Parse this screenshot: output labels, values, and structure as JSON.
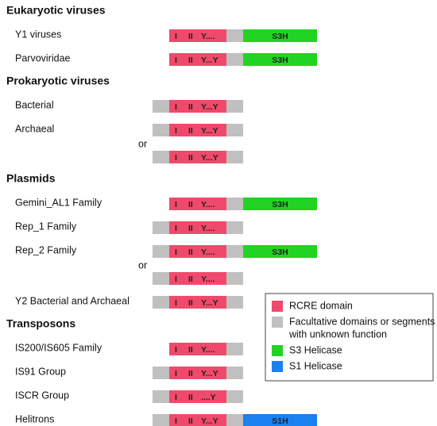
{
  "sections": [
    {
      "title": "Eukaryotic viruses",
      "rows": [
        {
          "label": "Y1 viruses",
          "bars": [
            [
              {
                "type": "rcre",
                "motifs": [
                  "I",
                  "II",
                  "Y...."
                ]
              },
              {
                "type": "gray"
              },
              {
                "type": "s3",
                "label": "S3H"
              }
            ]
          ]
        },
        {
          "label": "Parvoviridae",
          "bars": [
            [
              {
                "type": "rcre",
                "motifs": [
                  "I",
                  "II",
                  "Y...Y"
                ]
              },
              {
                "type": "gray"
              },
              {
                "type": "s3",
                "label": "S3H"
              }
            ]
          ]
        }
      ]
    },
    {
      "title": "Prokaryotic viruses",
      "rows": [
        {
          "label": "Bacterial",
          "bars": [
            [
              {
                "type": "gray"
              },
              {
                "type": "rcre",
                "motifs": [
                  "I",
                  "II",
                  "Y...Y"
                ]
              },
              {
                "type": "gray"
              }
            ]
          ]
        },
        {
          "label": "Archaeal",
          "or": "or",
          "bars": [
            [
              {
                "type": "gray"
              },
              {
                "type": "rcre",
                "motifs": [
                  "I",
                  "II",
                  "Y...Y"
                ]
              },
              {
                "type": "gray"
              }
            ],
            [
              {
                "type": "gray"
              },
              {
                "type": "rcre",
                "motifs": [
                  "I",
                  "II",
                  "Y...Y"
                ]
              },
              {
                "type": "gray"
              }
            ]
          ]
        }
      ]
    },
    {
      "title": "Plasmids",
      "rows": [
        {
          "label": "Gemini_AL1 Family",
          "bars": [
            [
              {
                "type": "rcre",
                "motifs": [
                  "I",
                  "II",
                  "Y...."
                ]
              },
              {
                "type": "gray"
              },
              {
                "type": "s3",
                "label": "S3H"
              }
            ]
          ]
        },
        {
          "label": "Rep_1 Family",
          "bars": [
            [
              {
                "type": "gray"
              },
              {
                "type": "rcre",
                "motifs": [
                  "I",
                  "II",
                  "Y...."
                ]
              },
              {
                "type": "gray"
              }
            ]
          ]
        },
        {
          "label": "Rep_2 Family",
          "or": "or",
          "bars": [
            [
              {
                "type": "gray"
              },
              {
                "type": "rcre",
                "motifs": [
                  "I",
                  "II",
                  "Y...."
                ]
              },
              {
                "type": "gray"
              },
              {
                "type": "s3",
                "label": "S3H"
              }
            ],
            [
              {
                "type": "gray"
              },
              {
                "type": "rcre",
                "motifs": [
                  "I",
                  "II",
                  "Y...."
                ]
              },
              {
                "type": "gray"
              }
            ]
          ]
        },
        {
          "label": "Y2 Bacterial and Archaeal",
          "bars": [
            [
              {
                "type": "gray"
              },
              {
                "type": "rcre",
                "motifs": [
                  "I",
                  "II",
                  "Y...Y"
                ]
              },
              {
                "type": "gray"
              }
            ]
          ]
        }
      ]
    },
    {
      "title": "Transposons",
      "rows": [
        {
          "label": "IS200/IS605 Family",
          "bars": [
            [
              {
                "type": "rcre",
                "motifs": [
                  "I",
                  "II",
                  "Y...."
                ]
              },
              {
                "type": "gray"
              }
            ]
          ]
        },
        {
          "label": "IS91 Group",
          "bars": [
            [
              {
                "type": "gray"
              },
              {
                "type": "rcre",
                "motifs": [
                  "I",
                  "II",
                  "Y...Y"
                ]
              },
              {
                "type": "gray"
              }
            ]
          ]
        },
        {
          "label": "ISCR Group",
          "bars": [
            [
              {
                "type": "gray"
              },
              {
                "type": "rcre",
                "motifs": [
                  "I",
                  "II",
                  "....Y"
                ]
              },
              {
                "type": "gray"
              }
            ]
          ]
        },
        {
          "label": "Helitrons",
          "bars": [
            [
              {
                "type": "gray"
              },
              {
                "type": "rcre",
                "motifs": [
                  "I",
                  "II",
                  "Y...Y"
                ]
              },
              {
                "type": "gray"
              },
              {
                "type": "s1",
                "label": "S1H"
              }
            ]
          ]
        }
      ]
    }
  ],
  "legend": [
    {
      "type": "rcre",
      "lines": [
        "RCRE domain"
      ]
    },
    {
      "type": "gray",
      "lines": [
        "Facultative domains or segments",
        "with unknown function"
      ]
    },
    {
      "type": "s3",
      "lines": [
        "S3 Helicase"
      ]
    },
    {
      "type": "s1",
      "lines": [
        "S1 Helicase"
      ]
    }
  ]
}
